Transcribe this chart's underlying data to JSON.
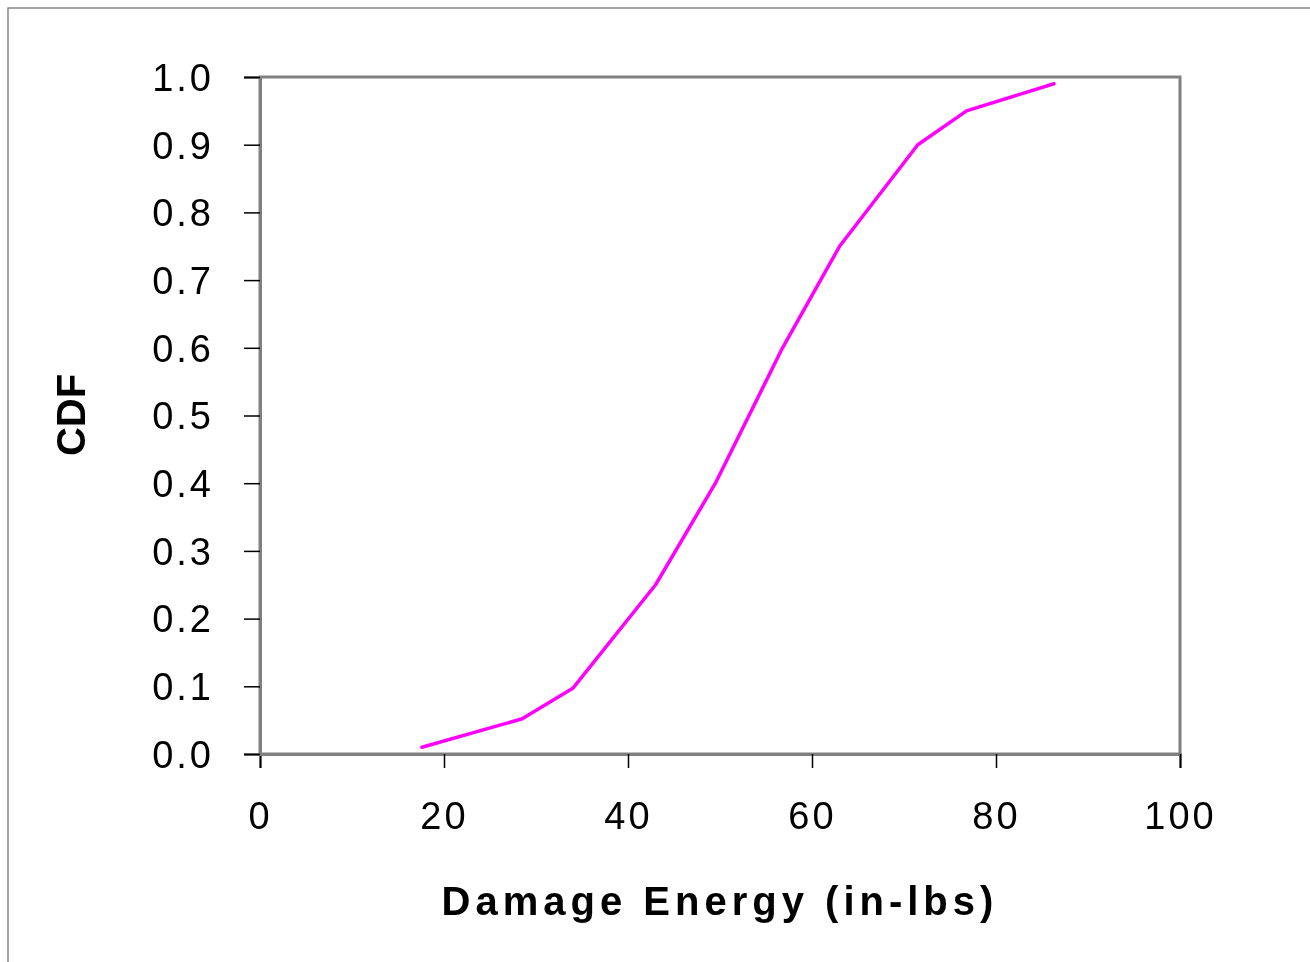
{
  "chart_data": {
    "type": "line",
    "xlabel": "Damage Energy (in-lbs)",
    "ylabel": "CDF",
    "series": [
      {
        "color": "#ff00ff",
        "x": [
          17.6,
          28.5,
          34,
          43,
          49.5,
          56.8,
          63,
          71.5,
          76.8,
          86.3
        ],
        "values": [
          0.01,
          0.052,
          0.097,
          0.25,
          0.4,
          0.6,
          0.75,
          0.9,
          0.95,
          0.99
        ]
      }
    ],
    "xlim": [
      0,
      100
    ],
    "xticks": [
      0,
      20,
      40,
      60,
      80,
      100
    ],
    "ylim": [
      0,
      1
    ],
    "yticks": [
      {
        "value": 0,
        "label": "0.0"
      },
      {
        "value": 0.1,
        "label": "0.1"
      },
      {
        "value": 0.2,
        "label": "0.2"
      },
      {
        "value": 0.3,
        "label": "0.3"
      },
      {
        "value": 0.4,
        "label": "0.4"
      },
      {
        "value": 0.5,
        "label": "0.5"
      },
      {
        "value": 0.6,
        "label": "0.6"
      },
      {
        "value": 0.7,
        "label": "0.7"
      },
      {
        "value": 0.8,
        "label": "0.8"
      },
      {
        "value": 0.9,
        "label": "0.9"
      },
      {
        "value": 1,
        "label": "1.0"
      }
    ],
    "grid": false,
    "marker": "none",
    "line_style": "solid"
  }
}
